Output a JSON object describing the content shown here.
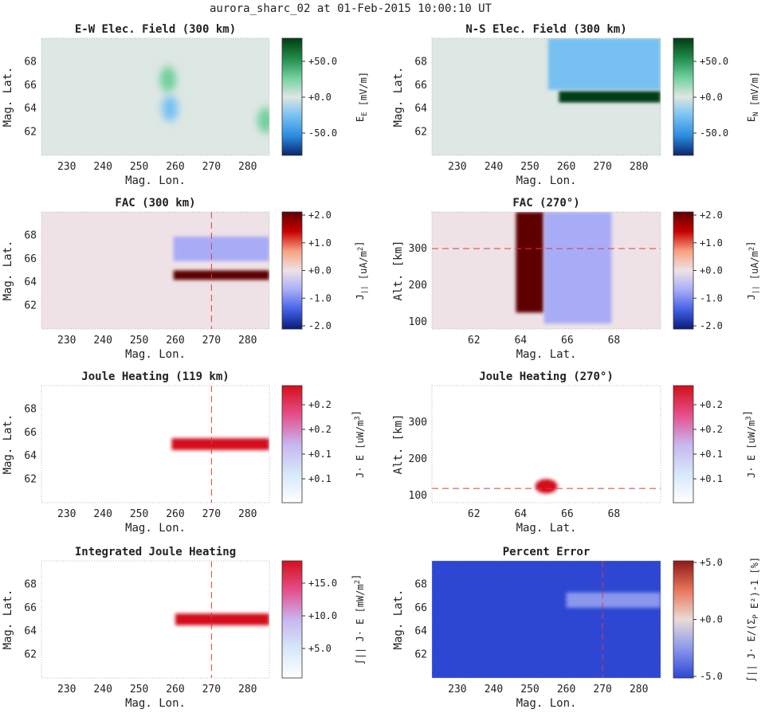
{
  "suptitle": "aurora_sharc_02 at 01-Feb-2015 10:00:10 UT",
  "colors": {
    "greens": [
      "#003d12",
      "#1f8a4a",
      "#6fcf9b",
      "#dde7e4",
      "#76c0f2",
      "#2b8ce0",
      "#0b2570"
    ],
    "redblue": [
      "#5e0000",
      "#c80000",
      "#f8a182",
      "#eee2e7",
      "#a8acf6",
      "#4462e6",
      "#0b1a7c"
    ],
    "joule": [
      "#d40f1c",
      "#e54f8a",
      "#c8b5f0",
      "#d5e8fa",
      "#ffffff"
    ],
    "percent": [
      "#8e1818",
      "#e8765a",
      "#eadbd5",
      "#8a97ec",
      "#2e46d2"
    ]
  },
  "chart_data": [
    {
      "id": "ew",
      "type": "heatmap",
      "title": "E-W Elec. Field (300 km)",
      "xlabel": "Mag. Lon.",
      "ylabel": "Mag. Lat.",
      "xlim": [
        223,
        286
      ],
      "ylim": [
        60,
        70
      ],
      "xticks": [
        "230",
        "240",
        "250",
        "260",
        "270",
        "280"
      ],
      "yticks": [
        "62",
        "64",
        "66",
        "68"
      ],
      "colorbar": {
        "label": "E_E [mV/m]",
        "ticks": [
          "+50.0",
          "+0.0",
          "-50.0"
        ],
        "range": [
          -75,
          75
        ],
        "scheme": "greens"
      },
      "features": [
        {
          "label": "positive lobe",
          "lon": 258,
          "lat": 66.5,
          "value": 30
        },
        {
          "label": "negative lobe",
          "lon": 258.5,
          "lat": 64,
          "value": -30
        },
        {
          "label": "edge lobe",
          "lon": 285,
          "lat": 63,
          "value": 25
        }
      ],
      "background": 0
    },
    {
      "id": "ns",
      "type": "heatmap",
      "title": "N-S Elec. Field (300 km)",
      "xlabel": "Mag. Lon.",
      "ylabel": "Mag. Lat.",
      "xlim": [
        223,
        286
      ],
      "ylim": [
        60,
        70
      ],
      "xticks": [
        "230",
        "240",
        "250",
        "260",
        "270",
        "280"
      ],
      "yticks": [
        "62",
        "64",
        "66",
        "68"
      ],
      "colorbar": {
        "label": "E_N [mV/m]",
        "ticks": [
          "+50.0",
          "+0.0",
          "-50.0"
        ],
        "range": [
          -75,
          75
        ],
        "scheme": "greens"
      },
      "features": [
        {
          "label": "strong northward band",
          "lon_range": [
            258,
            286
          ],
          "lat": 65,
          "value": 75
        },
        {
          "label": "southward region",
          "lon_range": [
            255,
            286
          ],
          "lat_range": [
            65.6,
            70
          ],
          "value": -18
        },
        {
          "label": "southward region low",
          "lon_range": [
            255,
            286
          ],
          "lat_range": [
            60,
            64.3
          ],
          "value": -12
        }
      ],
      "background": 0
    },
    {
      "id": "fac300",
      "type": "heatmap",
      "title": "FAC (300 km)",
      "xlabel": "Mag. Lon.",
      "ylabel": "Mag. Lat.",
      "xlim": [
        223,
        286
      ],
      "ylim": [
        60,
        70
      ],
      "xticks": [
        "230",
        "240",
        "250",
        "260",
        "270",
        "280"
      ],
      "yticks": [
        "62",
        "64",
        "66",
        "68"
      ],
      "colorbar": {
        "label": "J_|| [uA/m^2]",
        "ticks": [
          "+2.0",
          "+1.0",
          "+0.0",
          "-1.0",
          "-2.0"
        ],
        "range": [
          -2,
          2
        ],
        "scheme": "redblue"
      },
      "features": [
        {
          "label": "downward current",
          "lon_range": [
            259.5,
            286
          ],
          "lat_range": [
            65.8,
            67.9
          ],
          "value": -0.75
        },
        {
          "label": "upward current",
          "lon_range": [
            259.5,
            286
          ],
          "lat_range": [
            64.2,
            65.0
          ],
          "value": 2.0
        }
      ],
      "reference_line": {
        "orientation": "vertical",
        "value": 270
      },
      "background": 0
    },
    {
      "id": "fac270",
      "type": "heatmap",
      "title": "FAC (270°)",
      "xlabel": "Mag. Lat.",
      "ylabel": "Alt. [km]",
      "xlim": [
        60.2,
        70
      ],
      "ylim": [
        80,
        400
      ],
      "xticks": [
        "62",
        "64",
        "66",
        "68"
      ],
      "yticks": [
        "100",
        "200",
        "300"
      ],
      "colorbar": {
        "label": "J_|| [uA/m^2]",
        "ticks": [
          "+2.0",
          "+1.0",
          "+0.0",
          "-1.0",
          "-2.0"
        ],
        "range": [
          -2,
          2
        ],
        "scheme": "redblue"
      },
      "features": [
        {
          "label": "upward current column",
          "lat_range": [
            63.8,
            65.0
          ],
          "alt_range": [
            125,
            400
          ],
          "value": 2.0
        },
        {
          "label": "downward current column",
          "lat_range": [
            65.0,
            67.9
          ],
          "alt_range": [
            95,
            400
          ],
          "value": -0.75
        }
      ],
      "reference_line": {
        "orientation": "horizontal",
        "value": 300
      },
      "background": 0
    },
    {
      "id": "jh119",
      "type": "heatmap",
      "title": "Joule Heating (119 km)",
      "xlabel": "Mag. Lon.",
      "ylabel": "Mag. Lat.",
      "xlim": [
        223,
        286
      ],
      "ylim": [
        60,
        70
      ],
      "xticks": [
        "230",
        "240",
        "250",
        "260",
        "270",
        "280"
      ],
      "yticks": [
        "62",
        "64",
        "66",
        "68"
      ],
      "colorbar": {
        "label": "J· E [uW/m^3]",
        "ticks": [
          "+0.2",
          "+0.2",
          "+0.1",
          "+0.1"
        ],
        "range": [
          0,
          0.25
        ],
        "scheme": "joule"
      },
      "features": [
        {
          "label": "heating band",
          "lon_range": [
            259,
            286
          ],
          "lat": 65,
          "value": 0.25
        }
      ],
      "reference_line": {
        "orientation": "vertical",
        "value": 270
      },
      "background": 0
    },
    {
      "id": "jh270",
      "type": "heatmap",
      "title": "Joule Heating (270°)",
      "xlabel": "Mag. Lat.",
      "ylabel": "Alt. [km]",
      "xlim": [
        60.2,
        70
      ],
      "ylim": [
        80,
        400
      ],
      "xticks": [
        "62",
        "64",
        "66",
        "68"
      ],
      "yticks": [
        "100",
        "200",
        "300"
      ],
      "colorbar": {
        "label": "J· E [uW/m^3]",
        "ticks": [
          "+0.2",
          "+0.2",
          "+0.1",
          "+0.1"
        ],
        "range": [
          0,
          0.25
        ],
        "scheme": "joule"
      },
      "features": [
        {
          "label": "heating peak",
          "lat": 65.1,
          "alt": 125,
          "value": 0.25
        }
      ],
      "reference_line": {
        "orientation": "horizontal",
        "value": 119
      },
      "background": 0
    },
    {
      "id": "ijh",
      "type": "heatmap",
      "title": "Integrated Joule Heating",
      "xlabel": "Mag. Lon.",
      "ylabel": "Mag. Lat.",
      "xlim": [
        223,
        286
      ],
      "ylim": [
        60,
        70
      ],
      "xticks": [
        "230",
        "240",
        "250",
        "260",
        "270",
        "280"
      ],
      "yticks": [
        "62",
        "64",
        "66",
        "68"
      ],
      "colorbar": {
        "label": "∫|| J· E [mW/m^2]",
        "ticks": [
          "+15.0",
          "+10.0",
          "+5.0"
        ],
        "range": [
          0,
          19
        ],
        "scheme": "joule"
      },
      "features": [
        {
          "label": "integrated heating band",
          "lon_range": [
            260,
            286
          ],
          "lat": 65,
          "value": 19
        }
      ],
      "reference_line": {
        "orientation": "vertical",
        "value": 270
      },
      "background": 0
    },
    {
      "id": "perr",
      "type": "heatmap",
      "title": "Percent Error",
      "xlabel": "Mag. Lon.",
      "ylabel": "Mag. Lat.",
      "xlim": [
        223,
        286
      ],
      "ylim": [
        60,
        70
      ],
      "xticks": [
        "230",
        "240",
        "250",
        "260",
        "270",
        "280"
      ],
      "yticks": [
        "62",
        "64",
        "66",
        "68"
      ],
      "colorbar": {
        "label": "∫|| J· E/(Σ_P E²)-1 [%]",
        "ticks": [
          "+5.0",
          "+0.0",
          "-5.0"
        ],
        "range": [
          -5,
          5
        ],
        "scheme": "percent"
      },
      "features": [
        {
          "label": "near-uniform error",
          "lon_range": [
            223,
            286
          ],
          "lat_range": [
            60,
            70
          ],
          "value": -4.7
        },
        {
          "label": "reduced error strip",
          "lon_range": [
            260,
            286
          ],
          "lat_range": [
            66,
            67.3
          ],
          "value": -3.7
        }
      ],
      "reference_line": {
        "orientation": "vertical",
        "value": 270
      },
      "background": -4.7
    }
  ]
}
